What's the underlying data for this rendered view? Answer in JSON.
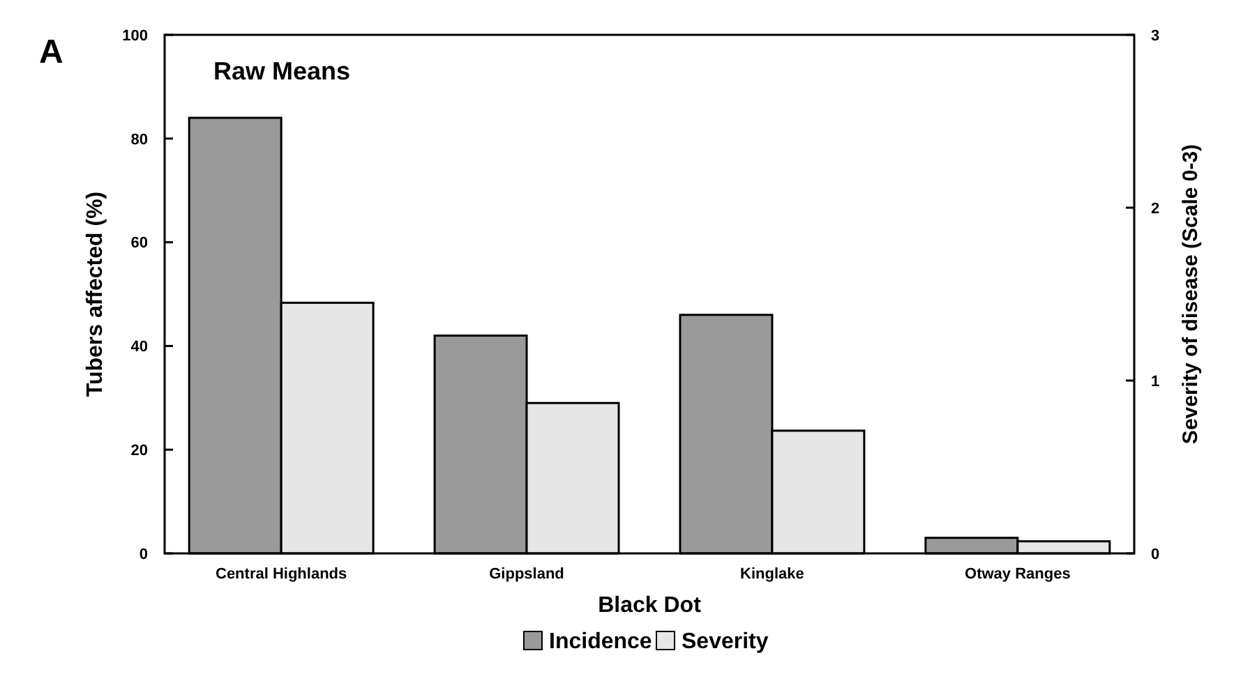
{
  "chart_data": {
    "type": "bar",
    "title": "Raw Means",
    "xlabel": "Black Dot",
    "ylabel": "Tubers affected (%)",
    "y2label": "Severity of disease (Scale 0-3)",
    "annotations": [
      "A"
    ],
    "categories": [
      "Central Highlands",
      "Gippsland",
      "Kinglake",
      "Otway Ranges"
    ],
    "series": [
      {
        "name": "Incidence",
        "color": "#9a9a9a",
        "values": [
          84,
          42,
          46,
          3
        ]
      },
      {
        "name": "Severity",
        "color": "#e6e6e6",
        "values": [
          1.45,
          0.87,
          0.71,
          0.07
        ],
        "axis": "y2"
      }
    ],
    "ylim": [
      0,
      100
    ],
    "yticks": [
      0,
      20,
      40,
      60,
      80,
      100
    ],
    "y2lim": [
      0,
      3
    ],
    "y2ticks": [
      0,
      1,
      2,
      3
    ],
    "legend": "bottom"
  }
}
